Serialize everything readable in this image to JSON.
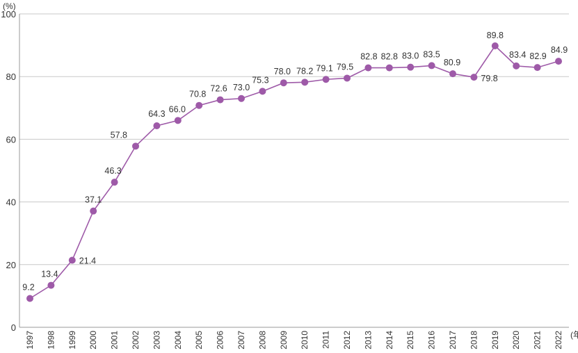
{
  "chart_data": {
    "type": "line",
    "title": "",
    "xlabel": "",
    "ylabel": "",
    "y_unit": "(%)",
    "x_unit": "(年)",
    "ylim": [
      0,
      100
    ],
    "yticks": [
      0,
      20,
      40,
      60,
      80,
      100
    ],
    "grid": "horizontal",
    "legend": "none",
    "categories": [
      "1997",
      "1998",
      "1999",
      "2000",
      "2001",
      "2002",
      "2003",
      "2004",
      "2005",
      "2006",
      "2007",
      "2008",
      "2009",
      "2010",
      "2011",
      "2012",
      "2013",
      "2014",
      "2015",
      "2016",
      "2017",
      "2018",
      "2019",
      "2020",
      "2021",
      "2022"
    ],
    "series": [
      {
        "values": [
          9.2,
          13.4,
          21.4,
          37.1,
          46.3,
          57.8,
          64.3,
          66.0,
          70.8,
          72.6,
          73.0,
          75.3,
          78.0,
          78.2,
          79.1,
          79.5,
          82.8,
          82.8,
          83.0,
          83.5,
          80.9,
          79.8,
          89.8,
          83.4,
          82.9,
          84.9
        ],
        "labels": [
          "9.2",
          "13.4",
          "21.4",
          "37.1",
          "46.3",
          "57.8",
          "64.3",
          "66.0",
          "70.8",
          "72.6",
          "73.0",
          "75.3",
          "78.0",
          "78.2",
          "79.1",
          "79.5",
          "82.8",
          "82.8",
          "83.0",
          "83.5",
          "80.9",
          "79.8",
          "89.8",
          "83.4",
          "82.9",
          "84.9"
        ],
        "color": "#9e5aa8"
      }
    ]
  }
}
